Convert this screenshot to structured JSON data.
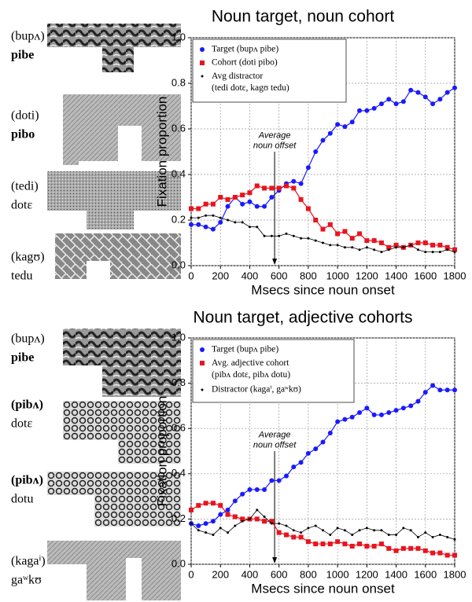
{
  "chart_data": [
    {
      "type": "line",
      "title": "Noun target, noun cohort",
      "x_label": "Msecs since noun onset",
      "y_label": "Fixation proportion",
      "xlim": [
        0,
        1800
      ],
      "xticks": [
        0,
        200,
        400,
        600,
        800,
        1000,
        1200,
        1400,
        1600,
        1800
      ],
      "ylim": [
        0,
        1
      ],
      "yticks": [
        {
          "value": 0,
          "label": "0.0"
        },
        {
          "value": 0.2,
          "label": "0.2"
        },
        {
          "value": 0.4,
          "label": "0.4"
        },
        {
          "value": 0.6,
          "label": "0.6"
        },
        {
          "value": 0.8,
          "label": "0.8"
        },
        {
          "value": 1,
          "label": "1.0"
        }
      ],
      "grid": true,
      "legend": "upper left",
      "x": [
        0,
        50,
        100,
        150,
        200,
        250,
        300,
        350,
        400,
        450,
        500,
        550,
        600,
        650,
        700,
        750,
        800,
        850,
        900,
        950,
        1000,
        1050,
        1100,
        1150,
        1200,
        1250,
        1300,
        1350,
        1400,
        1450,
        1500,
        1550,
        1600,
        1650,
        1700,
        1750,
        1800
      ],
      "series": [
        {
          "name": "Target (bupʌ pibe)",
          "color": "#1a1aff",
          "marker": "circle",
          "values": [
            0.18,
            0.18,
            0.17,
            0.16,
            0.19,
            0.26,
            0.3,
            0.27,
            0.28,
            0.26,
            0.26,
            0.3,
            0.33,
            0.36,
            0.37,
            0.36,
            0.43,
            0.5,
            0.55,
            0.58,
            0.62,
            0.61,
            0.63,
            0.68,
            0.68,
            0.69,
            0.71,
            0.73,
            0.71,
            0.72,
            0.77,
            0.76,
            0.74,
            0.71,
            0.73,
            0.76,
            0.78
          ]
        },
        {
          "name": "Cohort (doti pibo)",
          "color": "#e8141e",
          "marker": "square",
          "values": [
            0.25,
            0.25,
            0.27,
            0.27,
            0.3,
            0.29,
            0.3,
            0.31,
            0.32,
            0.35,
            0.34,
            0.34,
            0.34,
            0.35,
            0.34,
            0.29,
            0.25,
            0.2,
            0.16,
            0.18,
            0.14,
            0.15,
            0.12,
            0.14,
            0.11,
            0.11,
            0.1,
            0.08,
            0.09,
            0.08,
            0.09,
            0.1,
            0.1,
            0.09,
            0.09,
            0.08,
            0.07
          ]
        },
        {
          "name": "Avg distractor\n(tedi dotɛ, kagʊ tedu)",
          "color": "#000000",
          "marker": "dot",
          "values": [
            0.21,
            0.21,
            0.22,
            0.22,
            0.21,
            0.2,
            0.19,
            0.19,
            0.17,
            0.17,
            0.13,
            0.13,
            0.13,
            0.14,
            0.13,
            0.12,
            0.12,
            0.11,
            0.1,
            0.09,
            0.09,
            0.08,
            0.08,
            0.07,
            0.08,
            0.07,
            0.06,
            0.07,
            0.08,
            0.08,
            0.09,
            0.07,
            0.06,
            0.06,
            0.06,
            0.07,
            0.06
          ]
        }
      ],
      "annotation": {
        "lines": [
          "Average",
          "noun offset"
        ],
        "x": 570
      },
      "stimuli": [
        {
          "lines": [
            {
              "text": "(bupʌ)",
              "color": "#000000"
            },
            {
              "text": "pibe",
              "color": "#2a2ac8"
            }
          ]
        },
        {
          "lines": [
            {
              "text": "(doti)",
              "color": "#000000"
            },
            {
              "text": "pibo",
              "color": "#e8141e"
            }
          ]
        },
        {
          "lines": [
            {
              "text": "(tedi)",
              "color": "#000000"
            },
            {
              "text": "dotɛ",
              "color": "#000000"
            }
          ]
        },
        {
          "lines": [
            {
              "text": "(kagʊ)",
              "color": "#000000"
            },
            {
              "text": "tedu",
              "color": "#000000"
            }
          ]
        }
      ]
    },
    {
      "type": "line",
      "title": "Noun target, adjective cohorts",
      "x_label": "Msecs since noun onset",
      "y_label": "Fixation proportion",
      "xlim": [
        0,
        1800
      ],
      "xticks": [
        0,
        200,
        400,
        600,
        800,
        1000,
        1200,
        1400,
        1600,
        1800
      ],
      "ylim": [
        0,
        1
      ],
      "yticks": [
        {
          "value": 0,
          "label": "0.0"
        },
        {
          "value": 0.2,
          "label": "0.2"
        },
        {
          "value": 0.4,
          "label": "0.4"
        },
        {
          "value": 0.6,
          "label": "0.6"
        },
        {
          "value": 0.8,
          "label": "0.8"
        },
        {
          "value": 1,
          "label": "1.0"
        }
      ],
      "grid": true,
      "legend": "upper left",
      "x": [
        0,
        50,
        100,
        150,
        200,
        250,
        300,
        350,
        400,
        450,
        500,
        550,
        600,
        650,
        700,
        750,
        800,
        850,
        900,
        950,
        1000,
        1050,
        1100,
        1150,
        1200,
        1250,
        1300,
        1350,
        1400,
        1450,
        1500,
        1550,
        1600,
        1650,
        1700,
        1750,
        1800
      ],
      "series": [
        {
          "name": "Target (bupʌ pibe)",
          "color": "#1a1aff",
          "marker": "circle",
          "values": [
            0.18,
            0.17,
            0.18,
            0.19,
            0.22,
            0.24,
            0.28,
            0.31,
            0.33,
            0.33,
            0.33,
            0.37,
            0.37,
            0.39,
            0.43,
            0.45,
            0.49,
            0.51,
            0.54,
            0.58,
            0.63,
            0.64,
            0.65,
            0.67,
            0.69,
            0.66,
            0.66,
            0.67,
            0.68,
            0.69,
            0.7,
            0.72,
            0.76,
            0.79,
            0.77,
            0.77,
            0.77
          ]
        },
        {
          "name": "Avg. adjective cohort\n(pibʌ dotɛ, pibʌ dotu)",
          "color": "#e8141e",
          "marker": "square",
          "values": [
            0.24,
            0.26,
            0.27,
            0.27,
            0.26,
            0.22,
            0.21,
            0.2,
            0.2,
            0.2,
            0.19,
            0.19,
            0.14,
            0.13,
            0.12,
            0.12,
            0.1,
            0.09,
            0.09,
            0.09,
            0.1,
            0.09,
            0.08,
            0.09,
            0.08,
            0.08,
            0.09,
            0.07,
            0.06,
            0.07,
            0.07,
            0.07,
            0.06,
            0.05,
            0.05,
            0.04,
            0.04
          ]
        },
        {
          "name": "Distractor (kagaⁱ, gaʷkʊ)",
          "color": "#000000",
          "marker": "dot",
          "values": [
            0.18,
            0.15,
            0.14,
            0.13,
            0.16,
            0.14,
            0.17,
            0.19,
            0.2,
            0.24,
            0.21,
            0.18,
            0.18,
            0.17,
            0.15,
            0.14,
            0.16,
            0.17,
            0.15,
            0.13,
            0.16,
            0.15,
            0.13,
            0.15,
            0.16,
            0.15,
            0.15,
            0.13,
            0.13,
            0.16,
            0.15,
            0.12,
            0.14,
            0.12,
            0.13,
            0.12,
            0.11
          ]
        }
      ],
      "annotation": {
        "lines": [
          "Average",
          "noun offset"
        ],
        "x": 570
      },
      "stimuli": [
        {
          "lines": [
            {
              "text": "(bupʌ)",
              "color": "#000000"
            },
            {
              "text": "pibe",
              "color": "#2a2ac8"
            }
          ]
        },
        {
          "lines": [
            {
              "text": "(pibʌ)",
              "color": "#e8141e"
            },
            {
              "text": "dotɛ",
              "color": "#000000"
            }
          ]
        },
        {
          "lines": [
            {
              "text": "(pibʌ)",
              "color": "#e8141e"
            },
            {
              "text": "dotu",
              "color": "#000000"
            }
          ]
        },
        {
          "lines": [
            {
              "text": "(kagaⁱ)",
              "color": "#000000"
            },
            {
              "text": "gaʷkʊ",
              "color": "#000000"
            }
          ]
        }
      ]
    }
  ]
}
